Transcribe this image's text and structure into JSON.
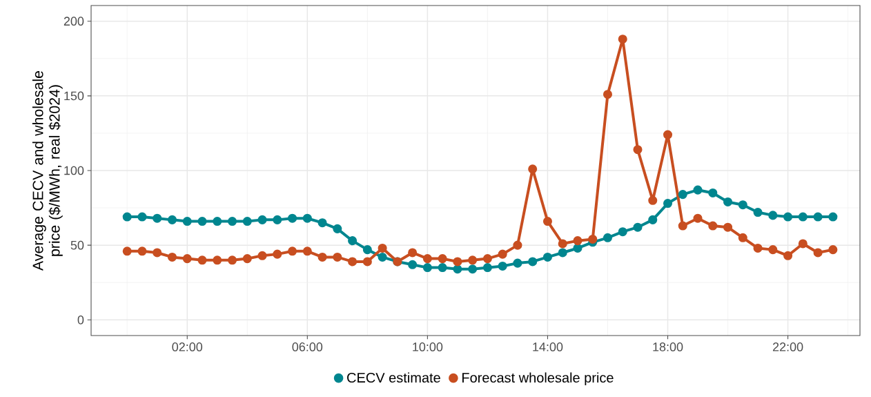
{
  "chart_data": {
    "type": "line",
    "ylabel": "Average CECV and wholesale price ($/MWh, real $2024)",
    "x": [
      0,
      0.5,
      1,
      1.5,
      2,
      2.5,
      3,
      3.5,
      4,
      4.5,
      5,
      5.5,
      6,
      6.5,
      7,
      7.5,
      8,
      8.5,
      9,
      9.5,
      10,
      10.5,
      11,
      11.5,
      12,
      12.5,
      13,
      13.5,
      14,
      14.5,
      15,
      15.5,
      16,
      16.5,
      17,
      17.5,
      18,
      18.5,
      19,
      19.5,
      20,
      20.5,
      21,
      21.5,
      22,
      22.5,
      23,
      23.5
    ],
    "series": [
      {
        "name": "CECV estimate",
        "color": "#00868f",
        "values": [
          69,
          69,
          68,
          67,
          66,
          66,
          66,
          66,
          66,
          67,
          67,
          68,
          68,
          65,
          61,
          53,
          47,
          42,
          39,
          37,
          35,
          35,
          34,
          34,
          35,
          36,
          38,
          39,
          42,
          45,
          48,
          52,
          55,
          59,
          62,
          67,
          78,
          84,
          87,
          85,
          79,
          77,
          72,
          70,
          69,
          69,
          69,
          69
        ]
      },
      {
        "name": "Forecast wholesale price",
        "color": "#c84e20",
        "values": [
          46,
          46,
          45,
          42,
          41,
          40,
          40,
          40,
          41,
          43,
          44,
          46,
          46,
          42,
          42,
          39,
          39,
          48,
          39,
          45,
          41,
          41,
          39,
          40,
          41,
          44,
          50,
          101,
          66,
          51,
          53,
          54,
          151,
          188,
          114,
          80,
          124,
          63,
          68,
          63,
          62,
          55,
          48,
          47,
          43,
          51,
          45,
          47
        ]
      }
    ],
    "xlim": [
      -1.2,
      24.4
    ],
    "xticks": [
      {
        "value": 2,
        "label": "02:00"
      },
      {
        "value": 6,
        "label": "06:00"
      },
      {
        "value": 10,
        "label": "10:00"
      },
      {
        "value": 14,
        "label": "14:00"
      },
      {
        "value": 18,
        "label": "18:00"
      },
      {
        "value": 22,
        "label": "22:00"
      }
    ],
    "ylim": [
      -10.5,
      210.5
    ],
    "yticks": [
      0,
      50,
      100,
      150,
      200
    ],
    "grid": true,
    "legend": "bottom",
    "marker": "circle",
    "line_style": "solid"
  }
}
